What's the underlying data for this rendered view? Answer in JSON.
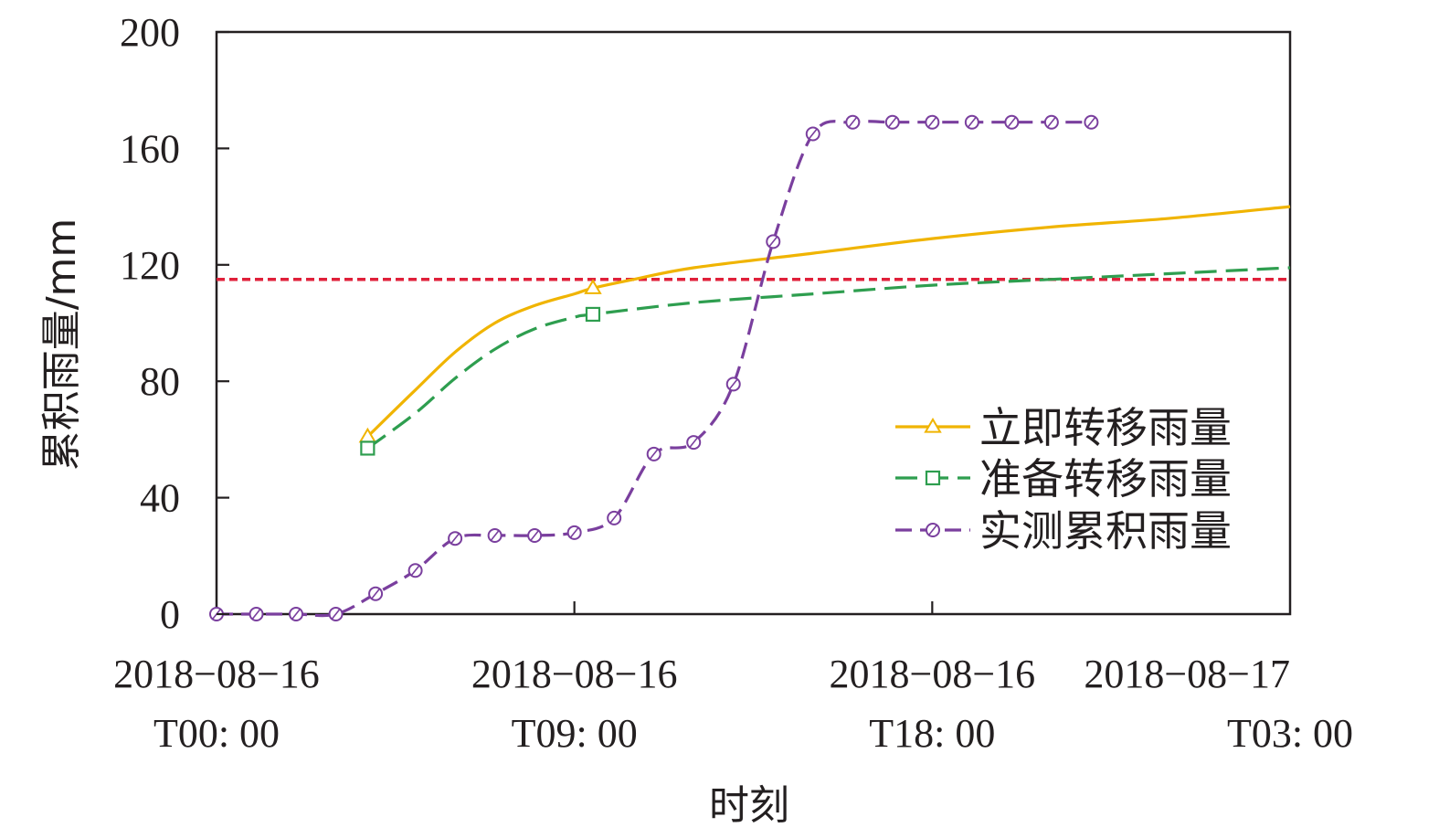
{
  "chart_data": {
    "type": "line",
    "title": "",
    "xlabel": "时刻",
    "ylabel": "累积雨量/mm",
    "xlim": [
      "2018-08-16T00:00",
      "2018-08-17T03:00"
    ],
    "ylim": [
      0,
      200
    ],
    "yticks": [
      0,
      40,
      80,
      120,
      160,
      200
    ],
    "xticks": [
      {
        "x": "2018-08-16T00:00",
        "line1": "2018−08−16",
        "line2": "T00: 00"
      },
      {
        "x": "2018-08-16T09:00",
        "line1": "2018−08−16",
        "line2": "T09: 00"
      },
      {
        "x": "2018-08-16T18:00",
        "line1": "2018−08−16",
        "line2": "T18: 00"
      },
      {
        "x": "2018-08-17T03:00",
        "line1": "2018−08−17",
        "line2": "T03: 00"
      }
    ],
    "grid": false,
    "legend_position": "right",
    "threshold": {
      "y": 115,
      "color": "#e0203a"
    },
    "series": [
      {
        "name": "立即转移雨量",
        "color": "#f0b400",
        "line_style": "solid",
        "marker": "triangle",
        "x": [
          "2018-08-16T03:48",
          "2018-08-16T05:00",
          "2018-08-16T06:00",
          "2018-08-16T07:00",
          "2018-08-16T08:00",
          "2018-08-16T09:00",
          "2018-08-16T09:28",
          "2018-08-16T10:30",
          "2018-08-16T12:00",
          "2018-08-16T15:00",
          "2018-08-16T18:00",
          "2018-08-16T21:00",
          "2018-08-17T00:00",
          "2018-08-17T03:00"
        ],
        "y": [
          61,
          77,
          90,
          100,
          106,
          110,
          112,
          115,
          119,
          124,
          129,
          133,
          136,
          140
        ],
        "markers_x": [
          "2018-08-16T03:48",
          "2018-08-16T09:28"
        ]
      },
      {
        "name": "准备转移雨量",
        "color": "#2e9e4f",
        "line_style": "dashed",
        "marker": "square",
        "x": [
          "2018-08-16T03:48",
          "2018-08-16T05:00",
          "2018-08-16T06:00",
          "2018-08-16T07:00",
          "2018-08-16T08:00",
          "2018-08-16T09:00",
          "2018-08-16T09:28",
          "2018-08-16T12:00",
          "2018-08-16T15:00",
          "2018-08-16T18:00",
          "2018-08-16T21:00",
          "2018-08-17T00:00",
          "2018-08-17T03:00"
        ],
        "y": [
          57,
          69,
          81,
          91,
          98,
          102,
          103,
          107,
          110,
          113,
          115,
          117,
          119
        ],
        "markers_x": [
          "2018-08-16T03:48",
          "2018-08-16T09:28"
        ]
      },
      {
        "name": "实测累积雨量",
        "color": "#7a3f9e",
        "line_style": "dashed",
        "marker": "circle",
        "x": [
          "2018-08-16T00:00",
          "2018-08-16T01:00",
          "2018-08-16T02:00",
          "2018-08-16T03:00",
          "2018-08-16T04:00",
          "2018-08-16T05:00",
          "2018-08-16T06:00",
          "2018-08-16T07:00",
          "2018-08-16T08:00",
          "2018-08-16T09:00",
          "2018-08-16T10:00",
          "2018-08-16T11:00",
          "2018-08-16T12:00",
          "2018-08-16T13:00",
          "2018-08-16T14:00",
          "2018-08-16T15:00",
          "2018-08-16T16:00",
          "2018-08-16T17:00",
          "2018-08-16T18:00",
          "2018-08-16T19:00",
          "2018-08-16T20:00",
          "2018-08-16T21:00",
          "2018-08-16T22:00"
        ],
        "y": [
          0,
          0,
          0,
          0,
          7,
          15,
          26,
          27,
          27,
          28,
          33,
          55,
          59,
          79,
          128,
          165,
          169,
          169,
          169,
          169,
          169,
          169,
          169
        ]
      }
    ]
  }
}
